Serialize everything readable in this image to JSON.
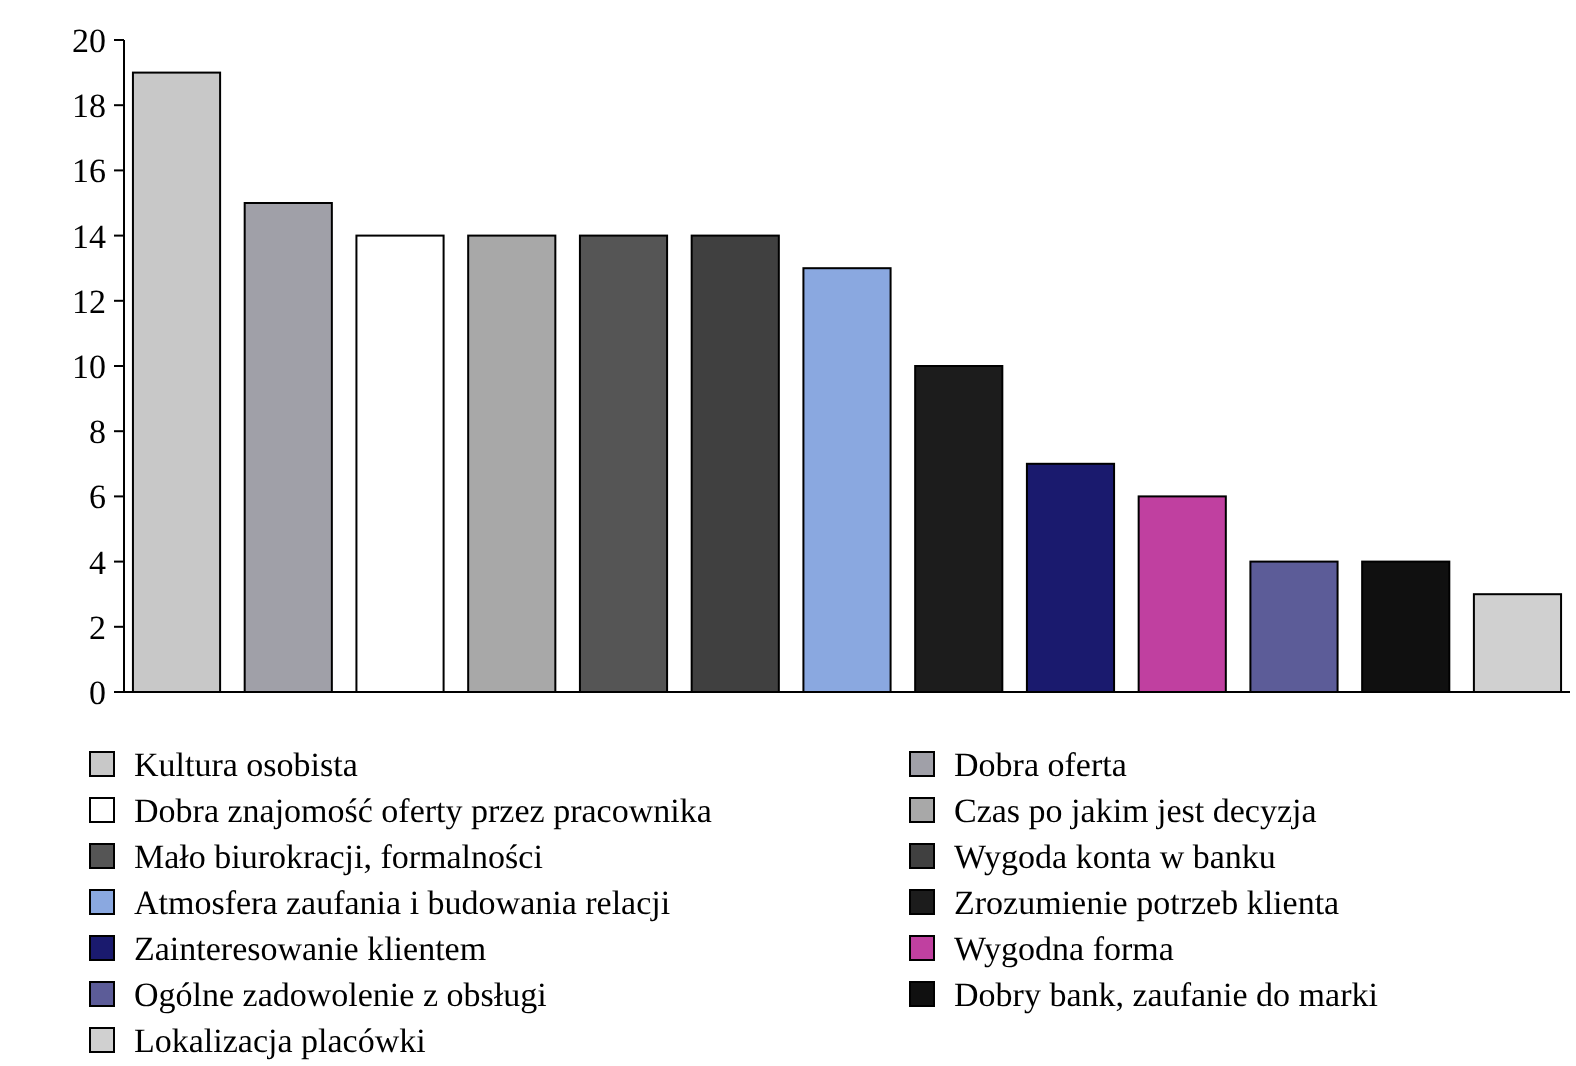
{
  "chart_data": {
    "type": "bar",
    "categories": [
      null
    ],
    "series": [
      {
        "name": "Kultura osobista",
        "color": "#c8c8c8",
        "values": [
          19
        ]
      },
      {
        "name": "Dobra oferta",
        "color": "#a0a0a8",
        "values": [
          15
        ]
      },
      {
        "name": "Dobra znajomość oferty przez pracownika",
        "color": "#ffffff",
        "values": [
          14
        ]
      },
      {
        "name": "Czas po jakim jest decyzja",
        "color": "#a8a8a8",
        "values": [
          14
        ]
      },
      {
        "name": "Mało biurokracji, formalności",
        "color": "#555555",
        "values": [
          14
        ]
      },
      {
        "name": "Wygoda konta w banku",
        "color": "#404040",
        "values": [
          14
        ]
      },
      {
        "name": "Atmosfera zaufania i budowania relacji",
        "color": "#8aa8e0",
        "values": [
          13
        ]
      },
      {
        "name": "Zrozumienie potrzeb klienta",
        "color": "#1c1c1c",
        "values": [
          10
        ]
      },
      {
        "name": "Zainteresowanie klientem",
        "color": "#1a1a6e",
        "values": [
          7
        ]
      },
      {
        "name": "Wygodna forma",
        "color": "#c040a0",
        "values": [
          6
        ]
      },
      {
        "name": "Ogólne zadowolenie z obsługi",
        "color": "#5c5c98",
        "values": [
          4
        ]
      },
      {
        "name": "Dobry bank, zaufanie do marki",
        "color": "#101010",
        "values": [
          4
        ]
      },
      {
        "name": "Lokalizacja placówki",
        "color": "#d0d0d0",
        "values": [
          3
        ]
      }
    ],
    "ylim": [
      0,
      20
    ],
    "yticks": [
      0,
      2,
      4,
      6,
      8,
      10,
      12,
      14,
      16,
      18,
      20
    ],
    "legend": "bottom",
    "grid": false
  }
}
